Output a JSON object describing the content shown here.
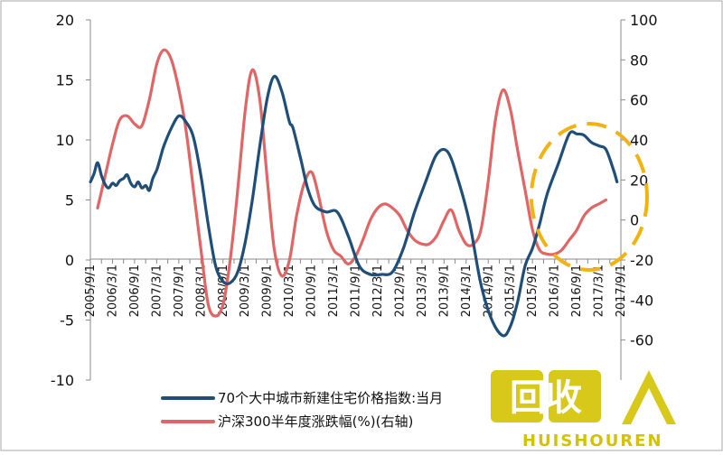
{
  "chart_data": {
    "type": "line",
    "title": "",
    "xlabel": "",
    "ylabel": "",
    "y_left": {
      "ticks": [
        -10,
        -5,
        0,
        5,
        10,
        15,
        20
      ],
      "ylim": [
        -10,
        20
      ]
    },
    "y_right": {
      "ticks": [
        -60,
        -40,
        -20,
        0,
        20,
        40,
        60,
        80,
        100
      ],
      "ylim": [
        -80,
        100
      ],
      "visible_min_tick": -60
    },
    "x_range": [
      2005.667,
      2017.667
    ],
    "x_tick_labels": [
      "2005/9/1",
      "2006/3/1",
      "2006/9/1",
      "2007/3/1",
      "2007/9/1",
      "2008/3/1",
      "2008/9/1",
      "2009/3/1",
      "2009/9/1",
      "2010/3/1",
      "2010/9/1",
      "2011/3/1",
      "2011/9/1",
      "2012/3/1",
      "2012/9/1",
      "2013/3/1",
      "2013/9/1",
      "2014/3/1",
      "2014/9/1",
      "2015/3/1",
      "2015/9/1",
      "2016/3/1",
      "2016/9/1",
      "2017/3/1",
      "2017/9/1"
    ],
    "grid": false,
    "legend": "bottom",
    "series": [
      {
        "name": "70个大中城市新建住宅价格指数:当月同比",
        "legend_visible": "70个大中城市新建住宅价格指数:当月",
        "axis": "left",
        "color": "#1f4e79",
        "x": [
          2005.67,
          2005.75,
          2005.83,
          2005.92,
          2006.0,
          2006.08,
          2006.17,
          2006.25,
          2006.33,
          2006.42,
          2006.5,
          2006.58,
          2006.67,
          2006.75,
          2006.83,
          2006.92,
          2007.0,
          2007.08,
          2007.17,
          2007.25,
          2007.33,
          2007.5,
          2007.67,
          2007.83,
          2008.0,
          2008.17,
          2008.33,
          2008.5,
          2008.67,
          2008.83,
          2009.0,
          2009.17,
          2009.33,
          2009.5,
          2009.67,
          2009.83,
          2010.0,
          2010.17,
          2010.25,
          2010.42,
          2010.58,
          2010.75,
          2011.0,
          2011.25,
          2011.5,
          2011.75,
          2012.0,
          2012.25,
          2012.5,
          2012.75,
          2013.0,
          2013.25,
          2013.5,
          2013.75,
          2014.0,
          2014.25,
          2014.5,
          2014.75,
          2015.0,
          2015.17,
          2015.33,
          2015.5,
          2015.67,
          2015.83,
          2016.0,
          2016.25,
          2016.5,
          2016.67,
          2016.83,
          2017.0,
          2017.17,
          2017.33,
          2017.5,
          2017.58
        ],
        "values": [
          6.5,
          7.2,
          8.1,
          7.0,
          6.3,
          6.0,
          6.4,
          6.2,
          6.6,
          6.8,
          7.1,
          6.4,
          6.1,
          6.5,
          6.0,
          6.2,
          5.8,
          6.8,
          7.5,
          8.5,
          9.5,
          11.0,
          12.0,
          11.5,
          10.2,
          7.0,
          3.0,
          -0.5,
          -1.8,
          -1.9,
          -1.0,
          1.5,
          5.0,
          9.5,
          13.5,
          15.3,
          14.0,
          11.5,
          11.0,
          8.5,
          6.0,
          4.5,
          4.0,
          4.0,
          2.0,
          -0.5,
          -1.2,
          -1.2,
          -1.0,
          1.0,
          4.0,
          6.5,
          8.8,
          9.0,
          6.5,
          3.0,
          -2.0,
          -5.0,
          -6.3,
          -5.5,
          -3.5,
          -0.5,
          1.0,
          3.0,
          5.5,
          8.0,
          10.5,
          10.5,
          10.4,
          9.8,
          9.5,
          9.2,
          7.5,
          6.5
        ]
      },
      {
        "name": "沪深300半年度涨跌幅(%)(右轴)",
        "legend_visible": "沪深300半年度涨跌幅(%)(右轴)",
        "axis": "right",
        "color": "#e06666",
        "x": [
          2005.83,
          2006.0,
          2006.17,
          2006.33,
          2006.5,
          2006.67,
          2006.83,
          2007.0,
          2007.17,
          2007.33,
          2007.5,
          2007.67,
          2007.83,
          2008.0,
          2008.17,
          2008.33,
          2008.5,
          2008.67,
          2008.83,
          2009.0,
          2009.17,
          2009.33,
          2009.5,
          2009.67,
          2009.83,
          2010.0,
          2010.17,
          2010.33,
          2010.5,
          2010.67,
          2010.83,
          2011.0,
          2011.17,
          2011.33,
          2011.5,
          2011.67,
          2011.83,
          2012.0,
          2012.17,
          2012.33,
          2012.5,
          2012.67,
          2012.83,
          2013.0,
          2013.17,
          2013.33,
          2013.5,
          2013.67,
          2013.83,
          2014.0,
          2014.17,
          2014.33,
          2014.5,
          2014.67,
          2014.83,
          2015.0,
          2015.17,
          2015.33,
          2015.5,
          2015.67,
          2015.83,
          2016.0,
          2016.17,
          2016.33,
          2016.5,
          2016.67,
          2016.83,
          2017.0,
          2017.17,
          2017.33
        ],
        "values": [
          6,
          22,
          38,
          50,
          52,
          48,
          47,
          60,
          78,
          85,
          80,
          65,
          45,
          15,
          -15,
          -42,
          -48,
          -42,
          -20,
          15,
          55,
          75,
          60,
          20,
          -15,
          -28,
          -20,
          2,
          18,
          24,
          12,
          -5,
          -15,
          -18,
          -22,
          -18,
          -10,
          0,
          6,
          8,
          6,
          2,
          -5,
          -10,
          -12,
          -12,
          -8,
          0,
          5,
          -5,
          -12,
          -12,
          -5,
          20,
          50,
          65,
          55,
          35,
          15,
          -5,
          -15,
          -17,
          -17,
          -15,
          -10,
          -5,
          2,
          6,
          8,
          10
        ]
      }
    ]
  },
  "watermark": {
    "main_text": "回收",
    "sub_text": "HUISHOUREN",
    "color": "#d4c200"
  }
}
